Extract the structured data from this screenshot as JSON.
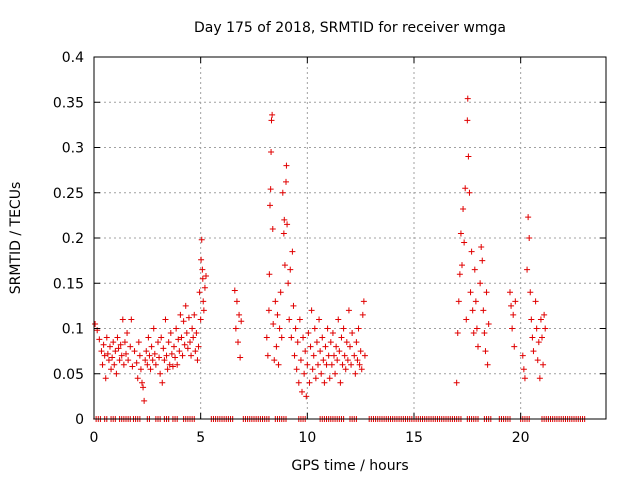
{
  "chart_data": {
    "type": "scatter",
    "title": "Day 175 of 2018, SRMTID for receiver wmga",
    "xlabel": "GPS time / hours",
    "ylabel": "SRMTID / TECUs",
    "xlim": [
      0,
      24
    ],
    "ylim": [
      0,
      0.4
    ],
    "xticks": [
      0,
      5,
      10,
      15,
      20
    ],
    "yticks": [
      0,
      0.05,
      0.1,
      0.15,
      0.2,
      0.25,
      0.3,
      0.35,
      0.4
    ],
    "xtick_labels": [
      "0",
      "5",
      "10",
      "15",
      "20"
    ],
    "ytick_labels": [
      "0",
      "0.05",
      "0.1",
      "0.15",
      "0.2",
      "0.25",
      "0.3",
      "0.35",
      "0.4"
    ],
    "grid": true,
    "marker": "+",
    "color": "#e00000",
    "series": [
      {
        "name": "SRMTID",
        "points": [
          [
            0.05,
            0.105
          ],
          [
            0.15,
            0.098
          ],
          [
            0.25,
            0.088
          ],
          [
            0.35,
            0.075
          ],
          [
            0.4,
            0.06
          ],
          [
            0.45,
            0.082
          ],
          [
            0.5,
            0.07
          ],
          [
            0.55,
            0.045
          ],
          [
            0.6,
            0.09
          ],
          [
            0.65,
            0.072
          ],
          [
            0.7,
            0.065
          ],
          [
            0.75,
            0.08
          ],
          [
            0.8,
            0.055
          ],
          [
            0.85,
            0.068
          ],
          [
            0.9,
            0.085
          ],
          [
            0.95,
            0.06
          ],
          [
            1.0,
            0.075
          ],
          [
            1.05,
            0.05
          ],
          [
            1.1,
            0.09
          ],
          [
            1.15,
            0.078
          ],
          [
            1.2,
            0.065
          ],
          [
            1.25,
            0.082
          ],
          [
            1.3,
            0.07
          ],
          [
            1.35,
            0.11
          ],
          [
            1.4,
            0.06
          ],
          [
            1.45,
            0.085
          ],
          [
            1.5,
            0.072
          ],
          [
            1.55,
            0.095
          ],
          [
            1.6,
            0.065
          ],
          [
            1.7,
            0.08
          ],
          [
            1.75,
            0.11
          ],
          [
            1.8,
            0.058
          ],
          [
            1.9,
            0.075
          ],
          [
            2.0,
            0.062
          ],
          [
            2.05,
            0.045
          ],
          [
            2.1,
            0.085
          ],
          [
            2.15,
            0.07
          ],
          [
            2.2,
            0.055
          ],
          [
            2.25,
            0.04
          ],
          [
            2.3,
            0.035
          ],
          [
            2.35,
            0.02
          ],
          [
            2.4,
            0.065
          ],
          [
            2.45,
            0.075
          ],
          [
            2.5,
            0.06
          ],
          [
            2.55,
            0.09
          ],
          [
            2.6,
            0.07
          ],
          [
            2.65,
            0.055
          ],
          [
            2.7,
            0.08
          ],
          [
            2.75,
            0.065
          ],
          [
            2.8,
            0.1
          ],
          [
            2.85,
            0.072
          ],
          [
            2.9,
            0.06
          ],
          [
            3.0,
            0.085
          ],
          [
            3.05,
            0.068
          ],
          [
            3.1,
            0.05
          ],
          [
            3.15,
            0.09
          ],
          [
            3.2,
            0.04
          ],
          [
            3.25,
            0.078
          ],
          [
            3.3,
            0.065
          ],
          [
            3.35,
            0.11
          ],
          [
            3.4,
            0.07
          ],
          [
            3.45,
            0.055
          ],
          [
            3.5,
            0.085
          ],
          [
            3.55,
            0.06
          ],
          [
            3.6,
            0.095
          ],
          [
            3.65,
            0.072
          ],
          [
            3.7,
            0.058
          ],
          [
            3.75,
            0.08
          ],
          [
            3.8,
            0.068
          ],
          [
            3.85,
            0.1
          ],
          [
            3.9,
            0.06
          ],
          [
            3.95,
            0.088
          ],
          [
            4.0,
            0.075
          ],
          [
            4.05,
            0.115
          ],
          [
            4.1,
            0.09
          ],
          [
            4.15,
            0.07
          ],
          [
            4.2,
            0.108
          ],
          [
            4.25,
            0.082
          ],
          [
            4.3,
            0.125
          ],
          [
            4.35,
            0.095
          ],
          [
            4.4,
            0.078
          ],
          [
            4.45,
            0.112
          ],
          [
            4.5,
            0.085
          ],
          [
            4.55,
            0.07
          ],
          [
            4.6,
            0.1
          ],
          [
            4.65,
            0.09
          ],
          [
            4.7,
            0.115
          ],
          [
            4.75,
            0.075
          ],
          [
            4.8,
            0.095
          ],
          [
            4.85,
            0.065
          ],
          [
            4.9,
            0.08
          ],
          [
            4.95,
            0.14
          ],
          [
            5.0,
            0.11
          ],
          [
            5.02,
            0.176
          ],
          [
            5.05,
            0.198
          ],
          [
            5.08,
            0.165
          ],
          [
            5.1,
            0.155
          ],
          [
            5.12,
            0.13
          ],
          [
            5.15,
            0.12
          ],
          [
            5.2,
            0.145
          ],
          [
            5.25,
            0.158
          ],
          [
            6.6,
            0.142
          ],
          [
            6.65,
            0.1
          ],
          [
            6.7,
            0.13
          ],
          [
            6.75,
            0.085
          ],
          [
            6.8,
            0.115
          ],
          [
            6.85,
            0.068
          ],
          [
            6.9,
            0.108
          ],
          [
            8.1,
            0.09
          ],
          [
            8.15,
            0.07
          ],
          [
            8.2,
            0.12
          ],
          [
            8.22,
            0.16
          ],
          [
            8.25,
            0.236
          ],
          [
            8.28,
            0.254
          ],
          [
            8.3,
            0.295
          ],
          [
            8.32,
            0.33
          ],
          [
            8.35,
            0.336
          ],
          [
            8.38,
            0.21
          ],
          [
            8.4,
            0.105
          ],
          [
            8.45,
            0.065
          ],
          [
            8.5,
            0.13
          ],
          [
            8.55,
            0.08
          ],
          [
            8.6,
            0.115
          ],
          [
            8.65,
            0.06
          ],
          [
            8.7,
            0.1
          ],
          [
            8.75,
            0.14
          ],
          [
            8.8,
            0.09
          ],
          [
            8.85,
            0.25
          ],
          [
            8.9,
            0.205
          ],
          [
            8.92,
            0.22
          ],
          [
            8.95,
            0.17
          ],
          [
            9.0,
            0.262
          ],
          [
            9.02,
            0.28
          ],
          [
            9.05,
            0.215
          ],
          [
            9.1,
            0.15
          ],
          [
            9.15,
            0.11
          ],
          [
            9.2,
            0.165
          ],
          [
            9.25,
            0.09
          ],
          [
            9.3,
            0.185
          ],
          [
            9.35,
            0.125
          ],
          [
            9.4,
            0.07
          ],
          [
            9.45,
            0.1
          ],
          [
            9.5,
            0.055
          ],
          [
            9.55,
            0.085
          ],
          [
            9.6,
            0.04
          ],
          [
            9.65,
            0.11
          ],
          [
            9.7,
            0.065
          ],
          [
            9.75,
            0.03
          ],
          [
            9.8,
            0.09
          ],
          [
            9.85,
            0.05
          ],
          [
            9.9,
            0.075
          ],
          [
            9.95,
            0.025
          ],
          [
            10.0,
            0.06
          ],
          [
            10.05,
            0.095
          ],
          [
            10.1,
            0.04
          ],
          [
            10.15,
            0.08
          ],
          [
            10.2,
            0.12
          ],
          [
            10.25,
            0.055
          ],
          [
            10.3,
            0.07
          ],
          [
            10.35,
            0.1
          ],
          [
            10.4,
            0.045
          ],
          [
            10.45,
            0.085
          ],
          [
            10.5,
            0.06
          ],
          [
            10.55,
            0.11
          ],
          [
            10.6,
            0.075
          ],
          [
            10.65,
            0.05
          ],
          [
            10.7,
            0.09
          ],
          [
            10.75,
            0.065
          ],
          [
            10.8,
            0.04
          ],
          [
            10.85,
            0.08
          ],
          [
            10.9,
            0.06
          ],
          [
            10.95,
            0.1
          ],
          [
            11.0,
            0.07
          ],
          [
            11.05,
            0.045
          ],
          [
            11.1,
            0.085
          ],
          [
            11.15,
            0.06
          ],
          [
            11.2,
            0.095
          ],
          [
            11.25,
            0.07
          ],
          [
            11.3,
            0.05
          ],
          [
            11.35,
            0.08
          ],
          [
            11.4,
            0.065
          ],
          [
            11.45,
            0.11
          ],
          [
            11.5,
            0.075
          ],
          [
            11.55,
            0.04
          ],
          [
            11.6,
            0.09
          ],
          [
            11.65,
            0.06
          ],
          [
            11.7,
            0.1
          ],
          [
            11.75,
            0.07
          ],
          [
            11.8,
            0.055
          ],
          [
            11.85,
            0.085
          ],
          [
            11.9,
            0.065
          ],
          [
            11.95,
            0.12
          ],
          [
            12.0,
            0.08
          ],
          [
            12.05,
            0.06
          ],
          [
            12.1,
            0.095
          ],
          [
            12.2,
            0.07
          ],
          [
            12.25,
            0.05
          ],
          [
            12.3,
            0.085
          ],
          [
            12.35,
            0.065
          ],
          [
            12.4,
            0.1
          ],
          [
            12.45,
            0.06
          ],
          [
            12.5,
            0.075
          ],
          [
            12.55,
            0.055
          ],
          [
            12.6,
            0.115
          ],
          [
            12.65,
            0.13
          ],
          [
            12.7,
            0.07
          ],
          [
            17.0,
            0.04
          ],
          [
            17.05,
            0.095
          ],
          [
            17.1,
            0.13
          ],
          [
            17.15,
            0.16
          ],
          [
            17.2,
            0.205
          ],
          [
            17.25,
            0.17
          ],
          [
            17.3,
            0.232
          ],
          [
            17.35,
            0.195
          ],
          [
            17.4,
            0.255
          ],
          [
            17.45,
            0.11
          ],
          [
            17.5,
            0.33
          ],
          [
            17.52,
            0.354
          ],
          [
            17.55,
            0.29
          ],
          [
            17.6,
            0.25
          ],
          [
            17.65,
            0.14
          ],
          [
            17.7,
            0.185
          ],
          [
            17.75,
            0.12
          ],
          [
            17.8,
            0.095
          ],
          [
            17.85,
            0.165
          ],
          [
            17.9,
            0.13
          ],
          [
            17.95,
            0.1
          ],
          [
            18.0,
            0.08
          ],
          [
            18.1,
            0.15
          ],
          [
            18.15,
            0.19
          ],
          [
            18.2,
            0.175
          ],
          [
            18.25,
            0.12
          ],
          [
            18.3,
            0.095
          ],
          [
            18.35,
            0.075
          ],
          [
            18.4,
            0.14
          ],
          [
            18.45,
            0.06
          ],
          [
            18.5,
            0.105
          ],
          [
            19.5,
            0.14
          ],
          [
            19.55,
            0.125
          ],
          [
            19.6,
            0.1
          ],
          [
            19.65,
            0.115
          ],
          [
            19.7,
            0.08
          ],
          [
            19.75,
            0.13
          ],
          [
            20.1,
            0.07
          ],
          [
            20.15,
            0.055
          ],
          [
            20.2,
            0.045
          ],
          [
            20.3,
            0.165
          ],
          [
            20.35,
            0.223
          ],
          [
            20.4,
            0.2
          ],
          [
            20.45,
            0.14
          ],
          [
            20.5,
            0.11
          ],
          [
            20.55,
            0.09
          ],
          [
            20.6,
            0.075
          ],
          [
            20.7,
            0.13
          ],
          [
            20.75,
            0.1
          ],
          [
            20.8,
            0.065
          ],
          [
            20.85,
            0.085
          ],
          [
            20.9,
            0.045
          ],
          [
            20.95,
            0.11
          ],
          [
            21.0,
            0.09
          ],
          [
            21.05,
            0.06
          ],
          [
            21.1,
            0.115
          ],
          [
            21.15,
            0.1
          ]
        ]
      }
    ],
    "zero_segments": [
      [
        0.1,
        0.3
      ],
      [
        0.5,
        0.6
      ],
      [
        0.8,
        1.0
      ],
      [
        1.2,
        1.7
      ],
      [
        1.85,
        2.2
      ],
      [
        2.5,
        2.65
      ],
      [
        2.9,
        3.1
      ],
      [
        3.3,
        3.5
      ],
      [
        3.7,
        3.95
      ],
      [
        4.2,
        4.7
      ],
      [
        5.5,
        6.5
      ],
      [
        7.0,
        8.2
      ],
      [
        8.5,
        9.0
      ],
      [
        9.6,
        9.9
      ],
      [
        10.6,
        11.7
      ],
      [
        12.0,
        12.3
      ],
      [
        12.9,
        17.2
      ],
      [
        17.5,
        18.0
      ],
      [
        18.3,
        18.6
      ],
      [
        19.0,
        19.5
      ],
      [
        20.0,
        20.4
      ],
      [
        21.0,
        23.0
      ]
    ]
  }
}
